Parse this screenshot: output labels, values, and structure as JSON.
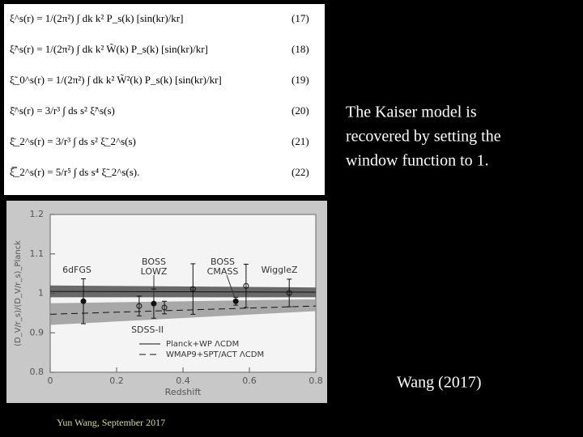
{
  "equations": [
    {
      "expr": "ξ^s(r) = 1/(2π²) ∫ dk k² P_s(k) [sin(kr)/kr]",
      "number": "(17)"
    },
    {
      "expr": "ξ̃^s(r) = 1/(2π²) ∫ dk k² W̃(k) P_s(k) [sin(kr)/kr]",
      "number": "(18)"
    },
    {
      "expr": "ξ̃_0^s(r) = 1/(2π²) ∫ dk k² W̃²(k) P_s(k) [sin(kr)/kr]",
      "number": "(19)"
    },
    {
      "expr": "ξ̄^s(r) = 3/r³ ∫ ds s² ξ̃^s(s)",
      "number": "(20)"
    },
    {
      "expr": "ξ̄_2^s(r) = 3/r³ ∫ ds s² ξ̃_2^s(s)",
      "number": "(21)"
    },
    {
      "expr": "ξ̿_2^s(r) = 5/r⁵ ∫ ds s⁴ ξ̃_2^s(s).",
      "number": "(22)"
    }
  ],
  "note": [
    "The Kaiser model is",
    "recovered by setting the",
    "window function to 1."
  ],
  "caption": "Wang (2017)",
  "footer": "Yun Wang, September 2017",
  "chart_data": {
    "type": "errorbar",
    "x_label": "Redshift",
    "y_label": "(D_V/r_s)/(D_V/r_s)_Planck",
    "xlim": [
      0,
      0.8
    ],
    "ylim": [
      0.8,
      1.2
    ],
    "xticks": [
      0,
      0.2,
      0.4,
      0.6,
      0.8
    ],
    "yticks": [
      0.8,
      0.9,
      1,
      1.1,
      1.2
    ],
    "points": {
      "x": [
        0.1,
        0.268,
        0.312,
        0.344,
        0.43,
        0.559,
        0.59,
        0.72
      ],
      "values": [
        0.98,
        0.968,
        0.974,
        0.964,
        1.011,
        0.98,
        1.019,
        1.001
      ],
      "errors": [
        0.057,
        0.025,
        0.037,
        0.016,
        0.064,
        0.01,
        0.055,
        0.035
      ],
      "filled": [
        true,
        false,
        true,
        false,
        false,
        true,
        false,
        false
      ]
    },
    "bands": [
      {
        "name": "Planck+WP ΛCDM",
        "color": "#505050",
        "dashed": false,
        "x": [
          0,
          0.8
        ],
        "lower": [
          0.99,
          0.99
        ],
        "upper": [
          1.02,
          1.015
        ],
        "center": [
          1.005,
          1.003
        ]
      },
      {
        "name": "WMAP9+SPT/ACT ΛCDM",
        "color": "#9a9a9a",
        "dashed": true,
        "x": [
          0,
          0.8
        ],
        "lower": [
          0.92,
          0.955
        ],
        "upper": [
          0.975,
          0.985
        ],
        "center": [
          0.947,
          0.968
        ]
      }
    ],
    "annotations": [
      [
        "6dFGS"
      ],
      [
        "BOSS",
        "LOWZ"
      ],
      [
        "BOSS",
        "CMASS"
      ],
      [
        "WiggleZ"
      ],
      [
        "SDSS-II"
      ]
    ]
  }
}
